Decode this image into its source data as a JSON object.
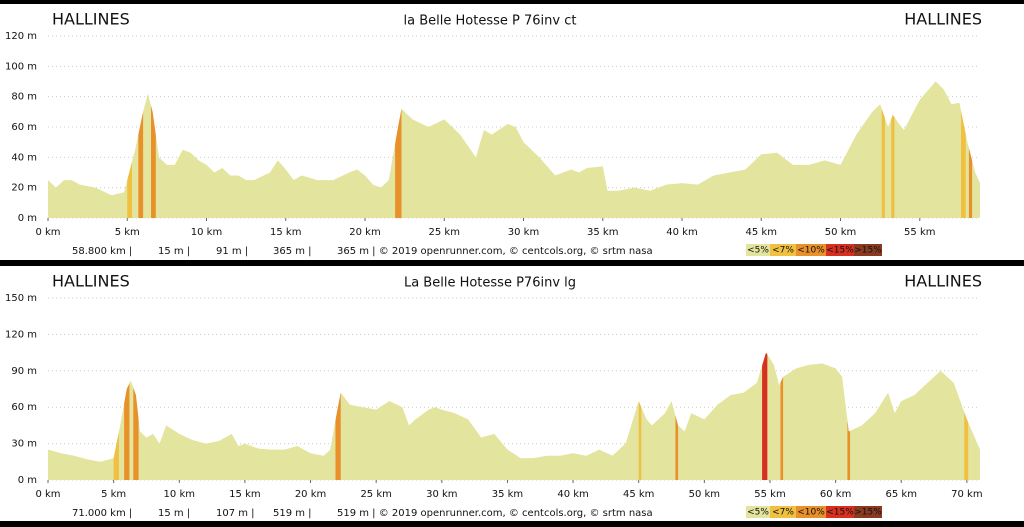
{
  "chart_data": [
    {
      "type": "area",
      "title": "la Belle Hotesse P 76inv ct",
      "start": "HALLINES",
      "end": "HALLINES",
      "color": "#e3e49e",
      "grid": true,
      "x": [
        0,
        0.5,
        1,
        1.5,
        2,
        3,
        4,
        4.8,
        5,
        5.5,
        6,
        6.3,
        6.6,
        7,
        7.5,
        8,
        8.5,
        9,
        9.5,
        10,
        10.5,
        11,
        11.5,
        12,
        12.5,
        13,
        14,
        14.5,
        15,
        15.5,
        16,
        17,
        18,
        19,
        19.5,
        20,
        20.5,
        21,
        21.5,
        22,
        22.3,
        22.7,
        23,
        24,
        25,
        26,
        27,
        27.5,
        28,
        29,
        29.5,
        30,
        31,
        32,
        33,
        33.5,
        34,
        35,
        35.3,
        36,
        37,
        38,
        39,
        40,
        41,
        42,
        43,
        44,
        45,
        46,
        47,
        48,
        49,
        50,
        51,
        52,
        52.5,
        53,
        53.3,
        53.7,
        54,
        55,
        56,
        56.5,
        57,
        57.5,
        58,
        58.5,
        58.8
      ],
      "values": [
        25,
        20,
        25,
        25,
        22,
        20,
        15,
        17,
        25,
        45,
        70,
        82,
        70,
        40,
        35,
        35,
        45,
        43,
        38,
        35,
        30,
        33,
        28,
        28,
        25,
        25,
        30,
        38,
        32,
        25,
        28,
        25,
        25,
        30,
        32,
        28,
        22,
        20,
        25,
        55,
        72,
        68,
        65,
        60,
        65,
        55,
        40,
        58,
        55,
        62,
        60,
        50,
        40,
        28,
        32,
        30,
        33,
        34,
        18,
        18,
        20,
        18,
        22,
        23,
        22,
        28,
        30,
        32,
        42,
        43,
        35,
        35,
        38,
        35,
        55,
        70,
        75,
        60,
        68,
        62,
        58,
        78,
        90,
        85,
        75,
        76,
        50,
        30,
        23
      ],
      "bands": [
        {
          "x": [
            5.0,
            5.3
          ],
          "color": "#f0c040"
        },
        {
          "x": [
            5.7,
            6.0
          ],
          "color": "#e8902a"
        },
        {
          "x": [
            6.5,
            6.8
          ],
          "color": "#e8902a"
        },
        {
          "x": [
            21.9,
            22.3
          ],
          "color": "#e8902a"
        },
        {
          "x": [
            52.6,
            52.8
          ],
          "color": "#f0c040"
        },
        {
          "x": [
            53.2,
            53.4
          ],
          "color": "#f0c040"
        },
        {
          "x": [
            57.6,
            57.9
          ],
          "color": "#f0c040"
        },
        {
          "x": [
            58.1,
            58.3
          ],
          "color": "#e8902a"
        }
      ],
      "xlim": [
        0,
        58.8
      ],
      "ylim": [
        0,
        120
      ],
      "xticks": [
        {
          "value": 0,
          "label": "0 km"
        },
        {
          "value": 5,
          "label": "5 km"
        },
        {
          "value": 10,
          "label": "10 km"
        },
        {
          "value": 15,
          "label": "15 km"
        },
        {
          "value": 20,
          "label": "20 km"
        },
        {
          "value": 25,
          "label": "25 km"
        },
        {
          "value": 30,
          "label": "30 km"
        },
        {
          "value": 35,
          "label": "35 km"
        },
        {
          "value": 40,
          "label": "40 km"
        },
        {
          "value": 45,
          "label": "45 km"
        },
        {
          "value": 50,
          "label": "50 km"
        },
        {
          "value": 55,
          "label": "55 km"
        }
      ],
      "yticks": [
        {
          "value": 0,
          "label": "0 m"
        },
        {
          "value": 20,
          "label": "20 m"
        },
        {
          "value": 40,
          "label": "40 m"
        },
        {
          "value": 60,
          "label": "60 m"
        },
        {
          "value": 80,
          "label": "80 m"
        },
        {
          "value": 100,
          "label": "100 m"
        },
        {
          "value": 120,
          "label": "120 m"
        }
      ],
      "footer": [
        "58.800 km |",
        "15 m |",
        "91 m |",
        "365 m |",
        "365 m | © 2019 openrunner.com, © centcols.org, © srtm nasa"
      ],
      "legend": [
        {
          "label": "<5%",
          "color": "#e3e49e"
        },
        {
          "label": "<7%",
          "color": "#f0c040"
        },
        {
          "label": "<10%",
          "color": "#e8902a"
        },
        {
          "label": "<15%",
          "color": "#d83020"
        },
        {
          "label": ">15%",
          "color": "#8a3a20"
        }
      ]
    },
    {
      "type": "area",
      "title": "La Belle Hotesse P76inv lg",
      "start": "HALLINES",
      "end": "HALLINES",
      "color": "#e3e49e",
      "grid": true,
      "x": [
        0,
        1,
        2,
        3,
        4,
        5,
        5.5,
        6,
        6.3,
        6.7,
        7,
        7.5,
        8,
        8.5,
        9,
        10,
        11,
        12,
        13,
        14,
        14.5,
        15,
        16,
        17,
        18,
        19,
        20,
        21,
        21.5,
        22,
        22.3,
        23,
        24,
        25,
        26,
        27,
        27.5,
        28,
        29,
        29.5,
        30,
        31,
        32,
        33,
        34,
        35,
        36,
        37,
        38,
        39,
        40,
        41,
        42,
        43,
        44,
        45,
        45.6,
        46,
        47,
        47.5,
        48,
        48.5,
        49,
        50,
        51,
        52,
        53,
        54,
        54.7,
        55.3,
        55.7,
        56,
        57,
        58,
        59,
        60,
        60.5,
        61,
        62,
        63,
        64,
        64.5,
        65,
        66,
        67,
        68,
        69,
        70,
        71
      ],
      "values": [
        25,
        22,
        20,
        17,
        15,
        18,
        45,
        75,
        82,
        70,
        40,
        35,
        38,
        30,
        45,
        38,
        33,
        30,
        32,
        38,
        28,
        30,
        26,
        25,
        25,
        28,
        22,
        20,
        25,
        55,
        72,
        62,
        60,
        58,
        65,
        60,
        45,
        50,
        58,
        60,
        58,
        55,
        50,
        35,
        38,
        25,
        18,
        18,
        20,
        20,
        22,
        20,
        25,
        20,
        30,
        65,
        50,
        45,
        55,
        65,
        45,
        40,
        55,
        50,
        62,
        70,
        72,
        80,
        105,
        95,
        78,
        85,
        92,
        95,
        96,
        92,
        85,
        40,
        45,
        55,
        72,
        55,
        65,
        70,
        80,
        90,
        80,
        50,
        25
      ],
      "bands": [
        {
          "x": [
            5.0,
            5.4
          ],
          "color": "#f0c040"
        },
        {
          "x": [
            5.8,
            6.2
          ],
          "color": "#e8902a"
        },
        {
          "x": [
            6.5,
            6.9
          ],
          "color": "#e8902a"
        },
        {
          "x": [
            21.9,
            22.3
          ],
          "color": "#e8902a"
        },
        {
          "x": [
            45.0,
            45.2
          ],
          "color": "#f0c040"
        },
        {
          "x": [
            47.8,
            48.0
          ],
          "color": "#e8902a"
        },
        {
          "x": [
            54.4,
            54.8
          ],
          "color": "#d83020"
        },
        {
          "x": [
            55.8,
            56.0
          ],
          "color": "#e8902a"
        },
        {
          "x": [
            60.9,
            61.1
          ],
          "color": "#e8902a"
        },
        {
          "x": [
            69.8,
            70.1
          ],
          "color": "#f0c040"
        }
      ],
      "xlim": [
        0,
        71
      ],
      "ylim": [
        0,
        150
      ],
      "xticks": [
        {
          "value": 0,
          "label": "0 km"
        },
        {
          "value": 5,
          "label": "5 km"
        },
        {
          "value": 10,
          "label": "10 km"
        },
        {
          "value": 15,
          "label": "15 km"
        },
        {
          "value": 20,
          "label": "20 km"
        },
        {
          "value": 25,
          "label": "25 km"
        },
        {
          "value": 30,
          "label": "30 km"
        },
        {
          "value": 35,
          "label": "35 km"
        },
        {
          "value": 40,
          "label": "40 km"
        },
        {
          "value": 45,
          "label": "45 km"
        },
        {
          "value": 50,
          "label": "50 km"
        },
        {
          "value": 55,
          "label": "55 km"
        },
        {
          "value": 60,
          "label": "60 km"
        },
        {
          "value": 65,
          "label": "65 km"
        },
        {
          "value": 70,
          "label": "70 km"
        }
      ],
      "yticks": [
        {
          "value": 0,
          "label": "0 m"
        },
        {
          "value": 30,
          "label": "30 m"
        },
        {
          "value": 60,
          "label": "60 m"
        },
        {
          "value": 90,
          "label": "90 m"
        },
        {
          "value": 120,
          "label": "120 m"
        },
        {
          "value": 150,
          "label": "150 m"
        }
      ],
      "footer": [
        "71.000 km |",
        "15 m |",
        "107 m |",
        "519 m |",
        "519 m | © 2019 openrunner.com, © centcols.org, © srtm nasa"
      ],
      "legend": [
        {
          "label": "<5%",
          "color": "#e3e49e"
        },
        {
          "label": "<7%",
          "color": "#f0c040"
        },
        {
          "label": "<10%",
          "color": "#e8902a"
        },
        {
          "label": "<15%",
          "color": "#d83020"
        },
        {
          "label": ">15%",
          "color": "#8a3a20"
        }
      ]
    }
  ]
}
